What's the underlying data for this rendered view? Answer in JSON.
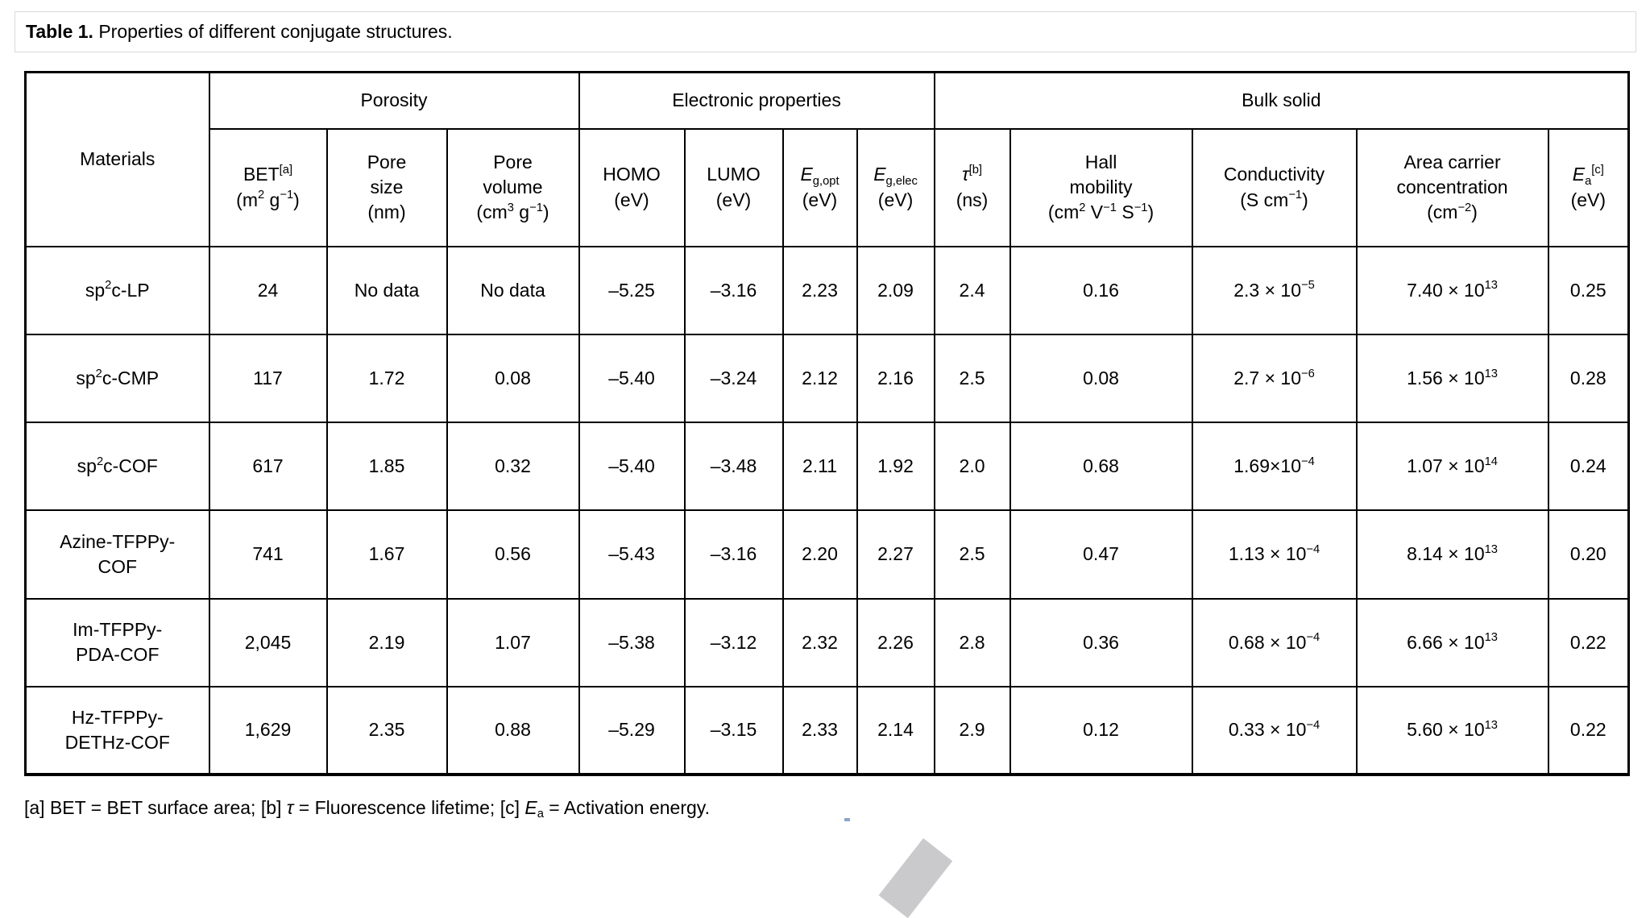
{
  "title": {
    "bold": "Table 1.",
    "rest": " Properties of different conjugate structures."
  },
  "table": {
    "corner_header": "Materials",
    "groups": [
      {
        "label": "Porosity"
      },
      {
        "label": "Electronic properties"
      },
      {
        "label": "Bulk solid"
      }
    ],
    "columns": [
      "BET^{[a]}\n(m^{2} g^{−1})",
      "Pore\nsize\n(nm)",
      "Pore\nvolume\n(cm^{3} g^{−1})",
      "HOMO\n(eV)",
      "LUMO\n(eV)",
      "*E*_{g,opt}\n(eV)",
      "*E*_{g,elec}\n(eV)",
      "*τ*^{[b]}\n(ns)",
      "Hall\nmobility\n(cm^{2} V^{−1} S^{−1})",
      "Conductivity\n(S cm^{−1})",
      "Area carrier\nconcentration\n(cm^{−2})",
      "*E*_{a}^{[c]}\n(eV)"
    ],
    "rows": [
      {
        "cells": [
          "sp^{2}c-LP",
          "24",
          "No data",
          "No data",
          "–5.25",
          "–3.16",
          "2.23",
          "2.09",
          "2.4",
          "0.16",
          "2.3 × 10^{−5}",
          "7.40 × 10^{13}",
          "0.25"
        ]
      },
      {
        "cells": [
          "sp^{2}c-CMP",
          "117",
          "1.72",
          "0.08",
          "–5.40",
          "–3.24",
          "2.12",
          "2.16",
          "2.5",
          "0.08",
          "2.7 × 10^{−6}",
          "1.56 × 10^{13}",
          "0.28"
        ]
      },
      {
        "cells": [
          "sp^{2}c-COF",
          "617",
          "1.85",
          "0.32",
          "–5.40",
          "–3.48",
          "2.11",
          "1.92",
          "2.0",
          "0.68",
          "1.69×10^{−4}",
          "1.07 × 10^{14}",
          "0.24"
        ]
      },
      {
        "cells": [
          "Azine-TFPPy-\nCOF",
          "741",
          "1.67",
          "0.56",
          "–5.43",
          "–3.16",
          "2.20",
          "2.27",
          "2.5",
          "0.47",
          "1.13 × 10^{−4}",
          "8.14 × 10^{13}",
          "0.20"
        ]
      },
      {
        "cells": [
          "Im-TFPPy-\nPDA-COF",
          "2,045",
          "2.19",
          "1.07",
          "–5.38",
          "–3.12",
          "2.32",
          "2.26",
          "2.8",
          "0.36",
          "0.68 × 10^{−4}",
          "6.66 × 10^{13}",
          "0.22"
        ]
      },
      {
        "cells": [
          "Hz-TFPPy-\nDETHz-COF",
          "1,629",
          "2.35",
          "0.88",
          "–5.29",
          "–3.15",
          "2.33",
          "2.14",
          "2.9",
          "0.12",
          "0.33 × 10^{−4}",
          "5.60 × 10^{13}",
          "0.22"
        ]
      }
    ]
  },
  "footnote": "[a] BET = BET surface area; [b] *τ* = Fluorescence lifetime; [c] *E*_{a} = Activation energy."
}
